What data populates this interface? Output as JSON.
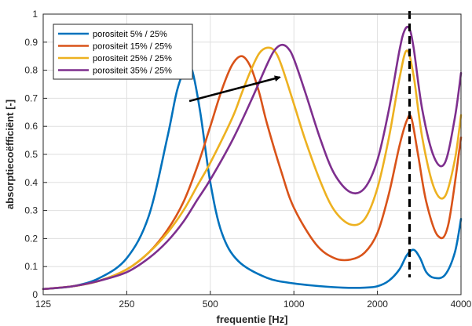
{
  "chart_data": {
    "type": "line",
    "xlabel": "frequentie [Hz]",
    "ylabel": "absorptiecoëfficiënt [-]",
    "x_scale": "log",
    "xlim": [
      125,
      4000
    ],
    "ylim": [
      0,
      1
    ],
    "x_ticks": [
      125,
      250,
      500,
      1000,
      2000,
      4000
    ],
    "x_tick_labels": [
      "125",
      "250",
      "500",
      "1000",
      "2000",
      "4000"
    ],
    "y_ticks": [
      0,
      0.1,
      0.2,
      0.3,
      0.4,
      0.5,
      0.6,
      0.7,
      0.8,
      0.9,
      1
    ],
    "y_tick_labels": [
      "0",
      "0.1",
      "0.2",
      "0.3",
      "0.4",
      "0.5",
      "0.6",
      "0.7",
      "0.8",
      "0.9",
      "1"
    ],
    "grid": true,
    "legend_position": "top-left",
    "series": [
      {
        "name": "porositeit 5% / 25%",
        "color": "#0072BD",
        "x": [
          125,
          160,
          200,
          250,
          300,
          350,
          380,
          410,
          430,
          460,
          500,
          550,
          630,
          800,
          1000,
          1250,
          1500,
          1800,
          2000,
          2200,
          2400,
          2550,
          2700,
          2850,
          3000,
          3200,
          3500,
          3800,
          4000
        ],
        "y": [
          0.02,
          0.03,
          0.06,
          0.13,
          0.28,
          0.56,
          0.73,
          0.81,
          0.8,
          0.65,
          0.4,
          0.22,
          0.12,
          0.06,
          0.04,
          0.03,
          0.025,
          0.025,
          0.03,
          0.05,
          0.09,
          0.14,
          0.16,
          0.13,
          0.08,
          0.06,
          0.07,
          0.15,
          0.27
        ]
      },
      {
        "name": "porositeit 15% / 25%",
        "color": "#D95319",
        "x": [
          125,
          160,
          200,
          250,
          300,
          350,
          400,
          450,
          500,
          550,
          600,
          650,
          700,
          750,
          800,
          900,
          1000,
          1200,
          1400,
          1600,
          1800,
          2000,
          2200,
          2400,
          2550,
          2650,
          2800,
          3000,
          3300,
          3600,
          4000
        ],
        "y": [
          0.02,
          0.03,
          0.05,
          0.09,
          0.15,
          0.23,
          0.33,
          0.46,
          0.6,
          0.73,
          0.82,
          0.85,
          0.81,
          0.72,
          0.61,
          0.44,
          0.31,
          0.18,
          0.13,
          0.125,
          0.15,
          0.22,
          0.36,
          0.53,
          0.62,
          0.63,
          0.5,
          0.33,
          0.21,
          0.25,
          0.56
        ]
      },
      {
        "name": "porositeit 25% / 25%",
        "color": "#EDB120",
        "x": [
          125,
          160,
          200,
          250,
          300,
          350,
          400,
          450,
          500,
          600,
          650,
          700,
          750,
          800,
          850,
          900,
          1000,
          1100,
          1250,
          1400,
          1600,
          1800,
          2000,
          2200,
          2400,
          2550,
          2700,
          2900,
          3200,
          3500,
          3800,
          4000
        ],
        "y": [
          0.02,
          0.03,
          0.05,
          0.09,
          0.15,
          0.22,
          0.3,
          0.39,
          0.47,
          0.63,
          0.72,
          0.8,
          0.86,
          0.88,
          0.87,
          0.82,
          0.68,
          0.55,
          0.4,
          0.3,
          0.25,
          0.27,
          0.38,
          0.56,
          0.77,
          0.87,
          0.78,
          0.56,
          0.38,
          0.35,
          0.48,
          0.64
        ]
      },
      {
        "name": "porositeit 35% / 25%",
        "color": "#7E2F8E",
        "x": [
          125,
          160,
          200,
          250,
          300,
          350,
          400,
          450,
          500,
          600,
          700,
          800,
          850,
          900,
          950,
          1000,
          1100,
          1250,
          1400,
          1600,
          1800,
          2000,
          2200,
          2400,
          2500,
          2600,
          2700,
          2900,
          3200,
          3500,
          3800,
          4000
        ],
        "y": [
          0.02,
          0.03,
          0.05,
          0.08,
          0.13,
          0.19,
          0.26,
          0.34,
          0.41,
          0.55,
          0.69,
          0.82,
          0.87,
          0.89,
          0.88,
          0.84,
          0.72,
          0.55,
          0.43,
          0.365,
          0.38,
          0.48,
          0.66,
          0.87,
          0.94,
          0.95,
          0.88,
          0.66,
          0.49,
          0.47,
          0.63,
          0.79
        ]
      }
    ],
    "annotations": [
      {
        "type": "arrow",
        "x1": 420,
        "y1": 0.69,
        "x2": 890,
        "y2": 0.775,
        "color": "#000000"
      },
      {
        "type": "vline",
        "x": 2610,
        "style": "dashed",
        "color": "#000000"
      }
    ]
  }
}
